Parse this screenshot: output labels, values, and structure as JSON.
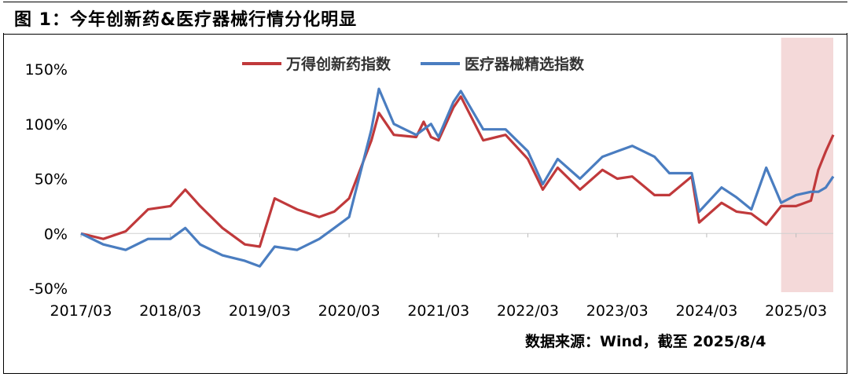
{
  "title": "图 1：今年创新药&医疗器械行情分化明显",
  "source": "数据来源：Wind，截至 2025/8/4",
  "colors": {
    "series1": "#c0393b",
    "series2": "#4a7dc0",
    "highlight": "#f4d9d9"
  },
  "chart_data": {
    "type": "line",
    "title": "",
    "xlabel": "",
    "ylabel": "",
    "ylim": [
      -50,
      150
    ],
    "y_tick_labels": [
      "-50%",
      "0%",
      "50%",
      "100%",
      "150%"
    ],
    "x_tick_labels": [
      "2017/03",
      "2018/03",
      "2019/03",
      "2020/03",
      "2021/03",
      "2022/03",
      "2023/03",
      "2024/03",
      "2025/03"
    ],
    "legend_position": "top-center",
    "highlight_region": {
      "from": "2025/01",
      "to": "2025/08",
      "label": ""
    },
    "series": [
      {
        "name": "万得创新药指数",
        "x": [
          "2017/03",
          "2017/06",
          "2017/09",
          "2017/12",
          "2018/03",
          "2018/05",
          "2018/07",
          "2018/10",
          "2019/01",
          "2019/03",
          "2019/05",
          "2019/08",
          "2019/11",
          "2020/01",
          "2020/03",
          "2020/06",
          "2020/07",
          "2020/09",
          "2020/12",
          "2021/01",
          "2021/02",
          "2021/03",
          "2021/05",
          "2021/06",
          "2021/09",
          "2021/12",
          "2022/03",
          "2022/05",
          "2022/07",
          "2022/10",
          "2023/01",
          "2023/03",
          "2023/05",
          "2023/08",
          "2023/10",
          "2024/01",
          "2024/02",
          "2024/05",
          "2024/07",
          "2024/09",
          "2024/11",
          "2025/01",
          "2025/03",
          "2025/05",
          "2025/06",
          "2025/07",
          "2025/08"
        ],
        "values": [
          0,
          -5,
          2,
          22,
          25,
          40,
          25,
          5,
          -10,
          -12,
          32,
          22,
          15,
          20,
          32,
          85,
          110,
          90,
          88,
          102,
          88,
          85,
          115,
          125,
          85,
          90,
          68,
          40,
          60,
          40,
          58,
          50,
          52,
          35,
          35,
          52,
          10,
          28,
          20,
          18,
          8,
          25,
          25,
          30,
          58,
          75,
          90
        ]
      },
      {
        "name": "医疗器械精选指数",
        "x": [
          "2017/03",
          "2017/06",
          "2017/09",
          "2017/12",
          "2018/03",
          "2018/05",
          "2018/07",
          "2018/10",
          "2019/01",
          "2019/03",
          "2019/05",
          "2019/08",
          "2019/11",
          "2020/01",
          "2020/03",
          "2020/06",
          "2020/07",
          "2020/09",
          "2020/12",
          "2021/01",
          "2021/02",
          "2021/03",
          "2021/05",
          "2021/06",
          "2021/09",
          "2021/12",
          "2022/03",
          "2022/05",
          "2022/07",
          "2022/10",
          "2023/01",
          "2023/03",
          "2023/05",
          "2023/08",
          "2023/10",
          "2024/01",
          "2024/02",
          "2024/05",
          "2024/07",
          "2024/09",
          "2024/11",
          "2025/01",
          "2025/03",
          "2025/05",
          "2025/06",
          "2025/07",
          "2025/08"
        ],
        "values": [
          0,
          -10,
          -15,
          -5,
          -5,
          5,
          -10,
          -20,
          -25,
          -30,
          -12,
          -15,
          -5,
          5,
          15,
          95,
          132,
          100,
          90,
          95,
          100,
          88,
          120,
          130,
          95,
          95,
          75,
          45,
          68,
          50,
          70,
          75,
          80,
          70,
          55,
          55,
          20,
          42,
          33,
          22,
          60,
          28,
          35,
          38,
          38,
          42,
          52
        ]
      }
    ]
  }
}
